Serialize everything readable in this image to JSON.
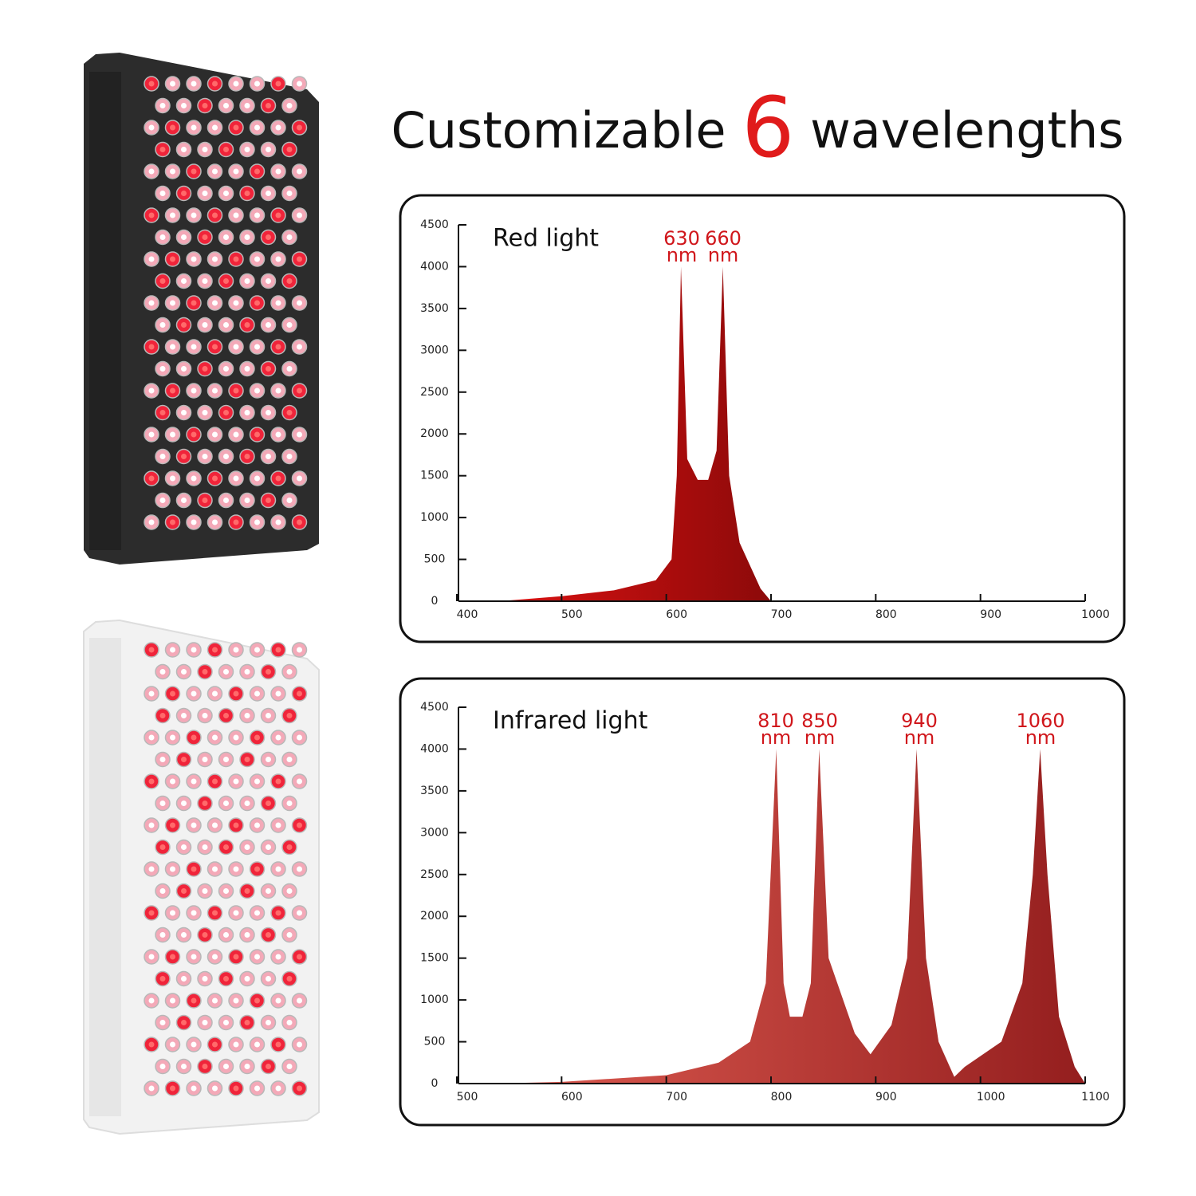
{
  "header": {
    "title": [
      "Customizable",
      "6",
      "wavelengths"
    ]
  },
  "chart_data": [
    {
      "type": "area",
      "title": "Red light",
      "annotations": [
        {
          "text": "630",
          "unit": "nm"
        },
        {
          "text": "660",
          "unit": "nm"
        }
      ],
      "x": [
        400,
        450,
        500,
        550,
        590,
        605,
        610,
        614,
        620,
        630,
        640,
        648,
        654,
        660,
        670,
        690,
        700
      ],
      "values": [
        0,
        10,
        60,
        130,
        250,
        500,
        1500,
        4000,
        1700,
        1450,
        1450,
        1800,
        4000,
        1500,
        700,
        150,
        0
      ],
      "colors": [
        "#e81212",
        "#8c0a0a"
      ],
      "xlim": [
        400,
        1000
      ],
      "xticks": [
        400,
        500,
        600,
        700,
        800,
        900,
        1000
      ],
      "ylim": [
        0,
        4500
      ],
      "yticks": [
        0,
        500,
        1000,
        1500,
        2000,
        2500,
        3000,
        3500,
        4000,
        4500
      ]
    },
    {
      "type": "area",
      "title": "Infrared light",
      "annotations": [
        {
          "text": "810",
          "unit": "nm"
        },
        {
          "text": "850",
          "unit": "nm"
        },
        {
          "text": "940",
          "unit": "nm"
        },
        {
          "text": "1060",
          "unit": "nm"
        }
      ],
      "x": [
        500,
        550,
        600,
        700,
        750,
        780,
        795,
        805,
        812,
        818,
        830,
        838,
        846,
        855,
        880,
        895,
        915,
        930,
        939,
        948,
        960,
        975,
        985,
        1020,
        1040,
        1050,
        1057,
        1064,
        1075,
        1090,
        1100
      ],
      "values": [
        0,
        5,
        20,
        100,
        250,
        500,
        1200,
        4000,
        1200,
        800,
        800,
        1200,
        4000,
        1500,
        600,
        350,
        700,
        1500,
        4000,
        1500,
        500,
        80,
        200,
        500,
        1200,
        2500,
        4000,
        2500,
        800,
        200,
        0
      ],
      "colors": [
        "#e36055",
        "#941e1e"
      ],
      "xlim": [
        500,
        1100
      ],
      "xticks": [
        500,
        600,
        700,
        800,
        900,
        1000,
        1100
      ],
      "ylim": [
        0,
        4500
      ],
      "yticks": [
        0,
        500,
        1000,
        1500,
        2000,
        2500,
        3000,
        3500,
        4000,
        4500
      ]
    }
  ]
}
